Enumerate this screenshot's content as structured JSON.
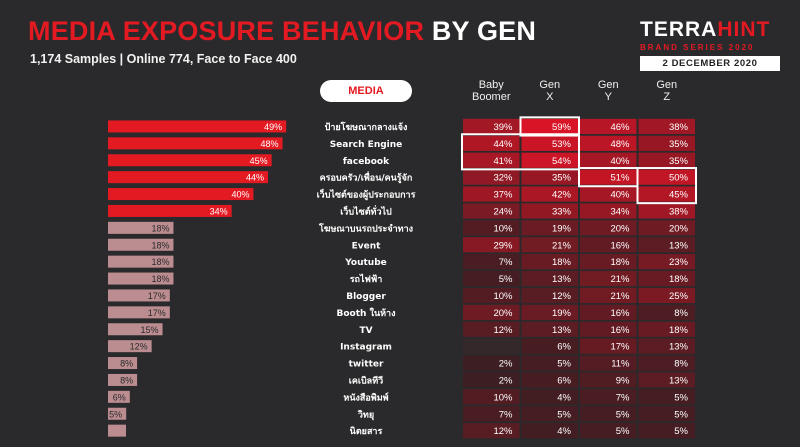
{
  "header": {
    "title_red": "MEDIA EXPOSURE BEHAVIOR",
    "title_white": "BY GEN",
    "subtitle": "1,174 Samples | Online 774, Face to Face 400"
  },
  "brand": {
    "logo_white": "TERRA",
    "logo_red": "HINT",
    "series": "BRAND SERIES 2020",
    "date": "2 DECEMBER 2020"
  },
  "colors": {
    "background": "#2a2a2c",
    "accent_red": "#e41a23",
    "bar_red": "#e41a23",
    "bar_muted": "#bb8d90"
  },
  "chart_data": [
    {
      "type": "bar",
      "orientation": "horizontal",
      "axis_label": "MEDIA",
      "categories": [
        "ป้ายโฆษณากลางแจ้ง",
        "Search Engine",
        "facebook",
        "ครอบครัว/เพื่อน/คนรู้จัก",
        "เว็บไซต์ของผู้ประกอบการ",
        "เว็บไซต์ทั่วไป",
        "โฆษณาบนรถประจำทาง",
        "Event",
        "Youtube",
        "รถไฟฟ้า",
        "Blogger",
        "Booth ในห้าง",
        "TV",
        "Instagram",
        "twitter",
        "เคเบิลทีวี",
        "หนังสือพิมพ์",
        "วิทยุ",
        "นิตยสาร"
      ],
      "values": [
        49,
        48,
        45,
        44,
        40,
        34,
        18,
        18,
        18,
        18,
        17,
        17,
        15,
        12,
        8,
        8,
        6,
        5,
        null
      ],
      "value_format": "%",
      "highlighted_count": 6,
      "xlim": [
        0,
        55
      ]
    },
    {
      "type": "heatmap",
      "columns": [
        "Baby Boomer",
        "Gen X",
        "Gen Y",
        "Gen Z"
      ],
      "rows": [
        [
          39,
          59,
          46,
          38
        ],
        [
          44,
          53,
          48,
          35
        ],
        [
          41,
          54,
          40,
          35
        ],
        [
          32,
          35,
          51,
          50
        ],
        [
          37,
          42,
          40,
          45
        ],
        [
          24,
          33,
          34,
          38
        ],
        [
          10,
          19,
          20,
          20
        ],
        [
          29,
          21,
          16,
          13
        ],
        [
          7,
          18,
          18,
          23
        ],
        [
          5,
          13,
          21,
          18
        ],
        [
          10,
          12,
          21,
          25
        ],
        [
          20,
          19,
          16,
          8
        ],
        [
          12,
          13,
          16,
          18
        ],
        [
          null,
          6,
          17,
          13
        ],
        [
          2,
          5,
          11,
          8
        ],
        [
          2,
          6,
          9,
          13
        ],
        [
          10,
          4,
          7,
          5
        ],
        [
          7,
          5,
          5,
          5
        ],
        [
          12,
          4,
          5,
          5
        ]
      ],
      "value_format": "%",
      "highlight_boxes": [
        {
          "rows": [
            0,
            0
          ],
          "cols": [
            1,
            1
          ]
        },
        {
          "rows": [
            1,
            2
          ],
          "cols": [
            0,
            1
          ]
        },
        {
          "rows": [
            3,
            3
          ],
          "cols": [
            2,
            2
          ]
        },
        {
          "rows": [
            3,
            4
          ],
          "cols": [
            3,
            3
          ]
        }
      ]
    }
  ]
}
